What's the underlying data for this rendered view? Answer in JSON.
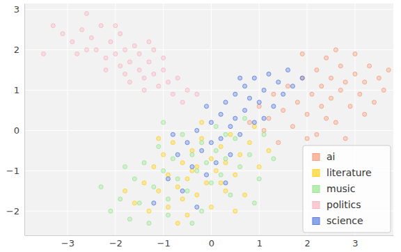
{
  "chart_data": {
    "type": "scatter",
    "marker": "circle",
    "grid": true,
    "legend": "lower right",
    "xlim": [
      -3.9,
      3.8
    ],
    "ylim": [
      -2.6,
      3.15
    ],
    "xticks": [
      {
        "value": -3,
        "label": "−3"
      },
      {
        "value": -2,
        "label": "−2"
      },
      {
        "value": -1,
        "label": "−1"
      },
      0,
      1,
      2,
      3
    ],
    "yticks": [
      {
        "value": -2,
        "label": "−2"
      },
      {
        "value": -1,
        "label": "−1"
      },
      0,
      1,
      2,
      3
    ],
    "series": [
      {
        "name": "ai",
        "color": "#f79d7e",
        "x": [
          0.8,
          1.0,
          1.2,
          1.3,
          1.5,
          1.6,
          1.7,
          1.8,
          1.9,
          2.0,
          2.0,
          2.1,
          2.2,
          2.3,
          2.3,
          2.4,
          2.5,
          2.5,
          2.6,
          2.7,
          2.7,
          2.8,
          2.9,
          3.0,
          3.0,
          3.1,
          3.2,
          3.3,
          3.4,
          3.5,
          3.6,
          1.4,
          2.2,
          2.8,
          1.9,
          2.6,
          3.2,
          1.1,
          2.4,
          3.7
        ],
        "values": [
          0.2,
          0.6,
          0.3,
          0.9,
          0.5,
          1.1,
          0.1,
          0.7,
          1.3,
          0.4,
          -0.2,
          0.9,
          1.5,
          0.6,
          1.1,
          1.8,
          0.8,
          1.3,
          0.2,
          1.0,
          1.6,
          1.2,
          0.6,
          1.4,
          1.9,
          0.9,
          1.2,
          1.6,
          0.7,
          1.3,
          1.0,
          -0.3,
          -0.1,
          -0.2,
          1.9,
          2.0,
          0.4,
          0.0,
          0.3,
          1.5
        ]
      },
      {
        "name": "literature",
        "color": "#ffd21f",
        "x": [
          -1.6,
          -1.4,
          -1.3,
          -1.2,
          -1.1,
          -1.0,
          -0.9,
          -0.9,
          -0.8,
          -0.7,
          -0.6,
          -0.5,
          -0.5,
          -0.4,
          -0.3,
          -0.3,
          -0.2,
          -0.1,
          0.0,
          0.0,
          0.1,
          0.2,
          0.3,
          0.3,
          0.4,
          0.5,
          0.6,
          0.7,
          0.8,
          1.0,
          -1.8,
          -0.7,
          0.5,
          -0.2,
          0.9,
          -1.1,
          0.2,
          -0.6,
          1.2,
          -0.4
        ],
        "values": [
          -1.8,
          -1.3,
          -2.0,
          -0.9,
          -1.5,
          -0.6,
          -1.9,
          -1.1,
          -0.3,
          -1.4,
          -0.8,
          -2.1,
          -1.2,
          -0.5,
          -1.6,
          -0.9,
          -0.2,
          -1.3,
          -0.7,
          -1.9,
          -1.0,
          -0.4,
          -1.5,
          -0.8,
          -0.1,
          -1.1,
          -0.6,
          -1.6,
          -0.3,
          -0.9,
          -1.5,
          -2.3,
          -2.0,
          0.2,
          0.1,
          -0.2,
          -1.3,
          -1.7,
          -0.5,
          -1.0
        ]
      },
      {
        "name": "music",
        "color": "#98e690",
        "x": [
          -2.1,
          -1.9,
          -1.7,
          -1.6,
          -1.5,
          -1.4,
          -1.3,
          -1.2,
          -1.1,
          -1.0,
          -0.9,
          -0.8,
          -0.7,
          -0.6,
          -0.5,
          -0.4,
          -0.3,
          -0.2,
          -0.2,
          -0.1,
          0.0,
          0.1,
          0.1,
          0.2,
          0.3,
          0.4,
          0.5,
          0.6,
          0.7,
          0.8,
          1.0,
          1.1,
          -2.3,
          -1.0,
          -0.4,
          0.9,
          -1.8,
          0.3,
          1.3,
          -0.9
        ],
        "values": [
          -2.0,
          -1.7,
          -2.2,
          -1.2,
          -1.8,
          -0.8,
          -2.3,
          -1.4,
          -0.4,
          -1.0,
          -1.7,
          -0.7,
          -1.2,
          -0.1,
          -1.5,
          -0.6,
          -1.0,
          -2.0,
          -0.3,
          -0.8,
          -1.3,
          -0.5,
          0.1,
          -1.1,
          -0.7,
          -1.6,
          -0.2,
          -0.9,
          0.3,
          -0.6,
          -1.2,
          -0.1,
          -1.4,
          0.2,
          -2.3,
          -1.8,
          -0.9,
          -0.1,
          -0.7,
          -2.1
        ]
      },
      {
        "name": "politics",
        "color": "#f7b6c2",
        "x": [
          -3.3,
          -3.1,
          -2.9,
          -2.7,
          -2.6,
          -2.5,
          -2.4,
          -2.3,
          -2.2,
          -2.1,
          -2.0,
          -1.9,
          -1.9,
          -1.8,
          -1.7,
          -1.6,
          -1.5,
          -1.5,
          -1.4,
          -1.3,
          -1.2,
          -1.2,
          -1.1,
          -1.0,
          -0.9,
          -0.8,
          -0.7,
          -0.5,
          -0.3,
          -2.8,
          -2.2,
          -1.7,
          -1.0,
          -3.5,
          -2.0,
          -1.4,
          -0.6,
          -2.6,
          -1.3,
          -1.8
        ],
        "values": [
          2.6,
          2.4,
          2.2,
          2.5,
          2.9,
          2.3,
          2.0,
          2.6,
          1.8,
          2.2,
          1.9,
          2.4,
          1.6,
          2.0,
          1.7,
          2.1,
          1.5,
          1.9,
          1.3,
          1.7,
          1.4,
          2.0,
          1.1,
          1.5,
          1.2,
          0.9,
          1.3,
          1.0,
          0.9,
          1.9,
          1.5,
          1.2,
          1.8,
          1.9,
          2.6,
          1.0,
          0.7,
          2.0,
          2.2,
          1.4
        ]
      },
      {
        "name": "science",
        "color": "#5b7fe0",
        "x": [
          -0.9,
          -0.7,
          -0.6,
          -0.5,
          -0.4,
          -0.3,
          -0.2,
          -0.1,
          0.0,
          0.0,
          0.1,
          0.2,
          0.2,
          0.3,
          0.4,
          0.4,
          0.5,
          0.5,
          0.6,
          0.7,
          0.7,
          0.8,
          0.9,
          0.9,
          1.0,
          1.1,
          1.2,
          1.3,
          1.4,
          1.5,
          1.6,
          1.7,
          -1.2,
          -0.3,
          0.3,
          -0.8,
          1.1,
          0.6,
          -0.1,
          1.9
        ],
        "values": [
          -1.2,
          -0.6,
          -1.5,
          -0.3,
          -0.9,
          0.0,
          -0.5,
          -1.1,
          0.2,
          -0.3,
          -0.8,
          0.4,
          -0.2,
          0.7,
          0.1,
          -0.6,
          0.9,
          0.3,
          -0.1,
          1.1,
          0.5,
          0.8,
          1.3,
          0.2,
          0.7,
          1.0,
          1.4,
          0.6,
          1.2,
          0.9,
          1.5,
          1.1,
          -1.8,
          -1.9,
          -1.3,
          -0.1,
          0.3,
          1.3,
          0.6,
          1.3
        ]
      }
    ]
  }
}
